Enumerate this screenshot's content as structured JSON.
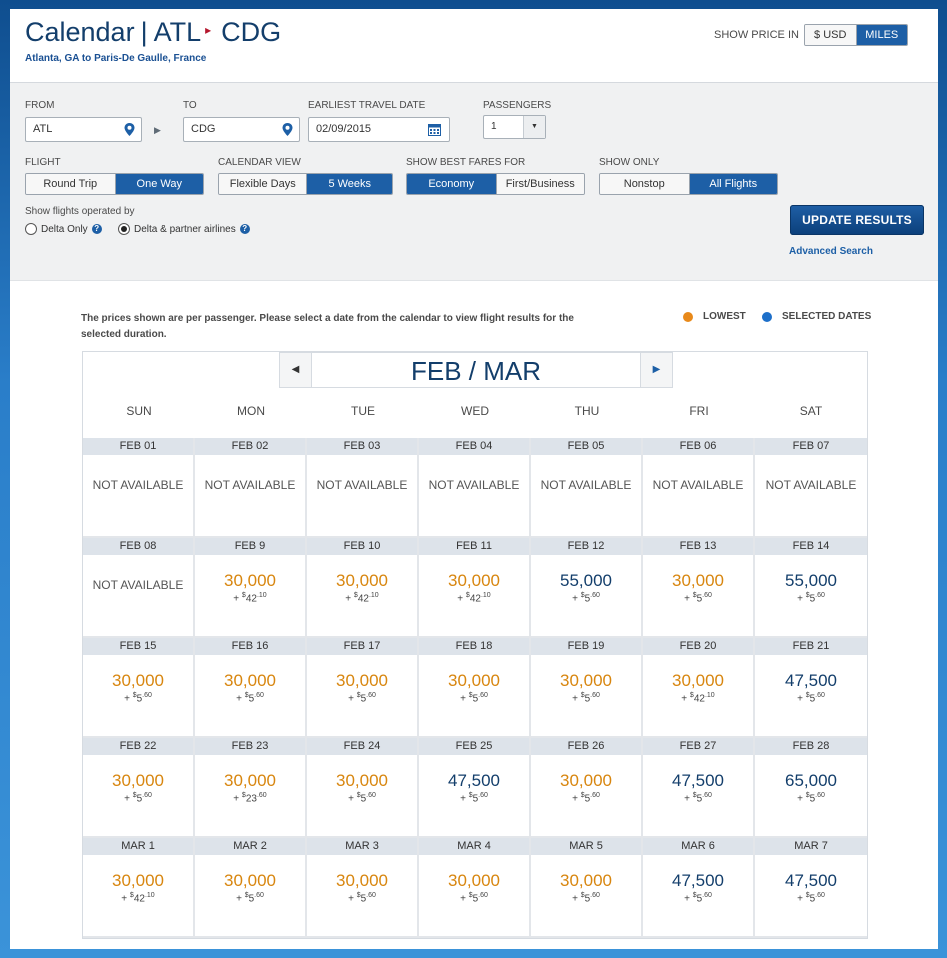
{
  "header": {
    "title_prefix": "Calendar",
    "separator": "|",
    "origin": "ATL",
    "arrow": "▸",
    "destination": "CDG",
    "subtitle": "Atlanta, GA to Paris-De Gaulle, France",
    "show_price_in_label": "SHOW PRICE IN",
    "price_options": [
      "$ USD",
      "MILES"
    ],
    "price_selected": "MILES"
  },
  "form": {
    "from_label": "FROM",
    "from_value": "ATL",
    "to_label": "TO",
    "to_value": "CDG",
    "date_label": "EARLIEST TRAVEL DATE",
    "date_value": "02/09/2015",
    "passengers_label": "PASSENGERS",
    "passengers_value": "1",
    "flight_label": "FLIGHT",
    "flight_options": [
      "Round Trip",
      "One Way"
    ],
    "flight_selected": "One Way",
    "calendar_view_label": "CALENDAR VIEW",
    "calendar_view_options": [
      "Flexible Days",
      "5 Weeks"
    ],
    "calendar_view_selected": "5 Weeks",
    "best_fares_label": "SHOW BEST FARES FOR",
    "best_fares_options": [
      "Economy",
      "First/Business"
    ],
    "best_fares_selected": "Economy",
    "show_only_label": "SHOW ONLY",
    "show_only_options": [
      "Nonstop",
      "All Flights"
    ],
    "show_only_selected": "All Flights",
    "operated_by_label": "Show flights operated by",
    "operated_options": [
      "Delta Only",
      "Delta & partner airlines"
    ],
    "operated_selected": "Delta & partner airlines",
    "help_glyph": "?",
    "update_button": "UPDATE RESULTS",
    "advanced_link": "Advanced Search"
  },
  "calendar": {
    "note": "The prices shown are per passenger. Please select a date from the calendar to view flight results for the selected duration.",
    "legend_lowest": "LOWEST",
    "legend_selected": "SELECTED DATES",
    "colors": {
      "lowest": "#e8891a",
      "selected": "#1d6fc9"
    },
    "month_label": "FEB / MAR",
    "prev_icon": "◀",
    "next_icon": "▶",
    "days_of_week": [
      "SUN",
      "MON",
      "TUE",
      "WED",
      "THU",
      "FRI",
      "SAT"
    ],
    "weeks": [
      [
        {
          "date": "FEB 01",
          "status": "NOT AVAILABLE"
        },
        {
          "date": "FEB 02",
          "status": "NOT AVAILABLE"
        },
        {
          "date": "FEB 03",
          "status": "NOT AVAILABLE"
        },
        {
          "date": "FEB 04",
          "status": "NOT AVAILABLE"
        },
        {
          "date": "FEB 05",
          "status": "NOT AVAILABLE"
        },
        {
          "date": "FEB 06",
          "status": "NOT AVAILABLE"
        },
        {
          "date": "FEB 07",
          "status": "NOT AVAILABLE"
        }
      ],
      [
        {
          "date": "FEB 08",
          "status": "NOT AVAILABLE"
        },
        {
          "date": "FEB 9",
          "miles": "30,000",
          "lowest": true,
          "tax_plus": "+",
          "tax_sign": "$",
          "tax_whole": "42",
          "tax_cents": ".10"
        },
        {
          "date": "FEB 10",
          "miles": "30,000",
          "lowest": true,
          "tax_plus": "+",
          "tax_sign": "$",
          "tax_whole": "42",
          "tax_cents": ".10"
        },
        {
          "date": "FEB 11",
          "miles": "30,000",
          "lowest": true,
          "tax_plus": "+",
          "tax_sign": "$",
          "tax_whole": "42",
          "tax_cents": ".10"
        },
        {
          "date": "FEB 12",
          "miles": "55,000",
          "lowest": false,
          "tax_plus": "+",
          "tax_sign": "$",
          "tax_whole": "5",
          "tax_cents": ".60"
        },
        {
          "date": "FEB 13",
          "miles": "30,000",
          "lowest": true,
          "tax_plus": "+",
          "tax_sign": "$",
          "tax_whole": "5",
          "tax_cents": ".60"
        },
        {
          "date": "FEB 14",
          "miles": "55,000",
          "lowest": false,
          "tax_plus": "+",
          "tax_sign": "$",
          "tax_whole": "5",
          "tax_cents": ".60"
        }
      ],
      [
        {
          "date": "FEB 15",
          "miles": "30,000",
          "lowest": true,
          "tax_plus": "+",
          "tax_sign": "$",
          "tax_whole": "5",
          "tax_cents": ".60"
        },
        {
          "date": "FEB 16",
          "miles": "30,000",
          "lowest": true,
          "tax_plus": "+",
          "tax_sign": "$",
          "tax_whole": "5",
          "tax_cents": ".60"
        },
        {
          "date": "FEB 17",
          "miles": "30,000",
          "lowest": true,
          "tax_plus": "+",
          "tax_sign": "$",
          "tax_whole": "5",
          "tax_cents": ".60"
        },
        {
          "date": "FEB 18",
          "miles": "30,000",
          "lowest": true,
          "tax_plus": "+",
          "tax_sign": "$",
          "tax_whole": "5",
          "tax_cents": ".60"
        },
        {
          "date": "FEB 19",
          "miles": "30,000",
          "lowest": true,
          "tax_plus": "+",
          "tax_sign": "$",
          "tax_whole": "5",
          "tax_cents": ".60"
        },
        {
          "date": "FEB 20",
          "miles": "30,000",
          "lowest": true,
          "tax_plus": "+",
          "tax_sign": "$",
          "tax_whole": "42",
          "tax_cents": ".10"
        },
        {
          "date": "FEB 21",
          "miles": "47,500",
          "lowest": false,
          "tax_plus": "+",
          "tax_sign": "$",
          "tax_whole": "5",
          "tax_cents": ".60"
        }
      ],
      [
        {
          "date": "FEB 22",
          "miles": "30,000",
          "lowest": true,
          "tax_plus": "+",
          "tax_sign": "$",
          "tax_whole": "5",
          "tax_cents": ".60"
        },
        {
          "date": "FEB 23",
          "miles": "30,000",
          "lowest": true,
          "tax_plus": "+",
          "tax_sign": "$",
          "tax_whole": "23",
          "tax_cents": ".60"
        },
        {
          "date": "FEB 24",
          "miles": "30,000",
          "lowest": true,
          "tax_plus": "+",
          "tax_sign": "$",
          "tax_whole": "5",
          "tax_cents": ".60"
        },
        {
          "date": "FEB 25",
          "miles": "47,500",
          "lowest": false,
          "tax_plus": "+",
          "tax_sign": "$",
          "tax_whole": "5",
          "tax_cents": ".60"
        },
        {
          "date": "FEB 26",
          "miles": "30,000",
          "lowest": true,
          "tax_plus": "+",
          "tax_sign": "$",
          "tax_whole": "5",
          "tax_cents": ".60"
        },
        {
          "date": "FEB 27",
          "miles": "47,500",
          "lowest": false,
          "tax_plus": "+",
          "tax_sign": "$",
          "tax_whole": "5",
          "tax_cents": ".60"
        },
        {
          "date": "FEB 28",
          "miles": "65,000",
          "lowest": false,
          "tax_plus": "+",
          "tax_sign": "$",
          "tax_whole": "5",
          "tax_cents": ".60"
        }
      ],
      [
        {
          "date": "MAR 1",
          "miles": "30,000",
          "lowest": true,
          "tax_plus": "+",
          "tax_sign": "$",
          "tax_whole": "42",
          "tax_cents": ".10"
        },
        {
          "date": "MAR 2",
          "miles": "30,000",
          "lowest": true,
          "tax_plus": "+",
          "tax_sign": "$",
          "tax_whole": "5",
          "tax_cents": ".60"
        },
        {
          "date": "MAR 3",
          "miles": "30,000",
          "lowest": true,
          "tax_plus": "+",
          "tax_sign": "$",
          "tax_whole": "5",
          "tax_cents": ".60"
        },
        {
          "date": "MAR 4",
          "miles": "30,000",
          "lowest": true,
          "tax_plus": "+",
          "tax_sign": "$",
          "tax_whole": "5",
          "tax_cents": ".60"
        },
        {
          "date": "MAR 5",
          "miles": "30,000",
          "lowest": true,
          "tax_plus": "+",
          "tax_sign": "$",
          "tax_whole": "5",
          "tax_cents": ".60"
        },
        {
          "date": "MAR 6",
          "miles": "47,500",
          "lowest": false,
          "tax_plus": "+",
          "tax_sign": "$",
          "tax_whole": "5",
          "tax_cents": ".60"
        },
        {
          "date": "MAR 7",
          "miles": "47,500",
          "lowest": false,
          "tax_plus": "+",
          "tax_sign": "$",
          "tax_whole": "5",
          "tax_cents": ".60"
        }
      ]
    ]
  }
}
